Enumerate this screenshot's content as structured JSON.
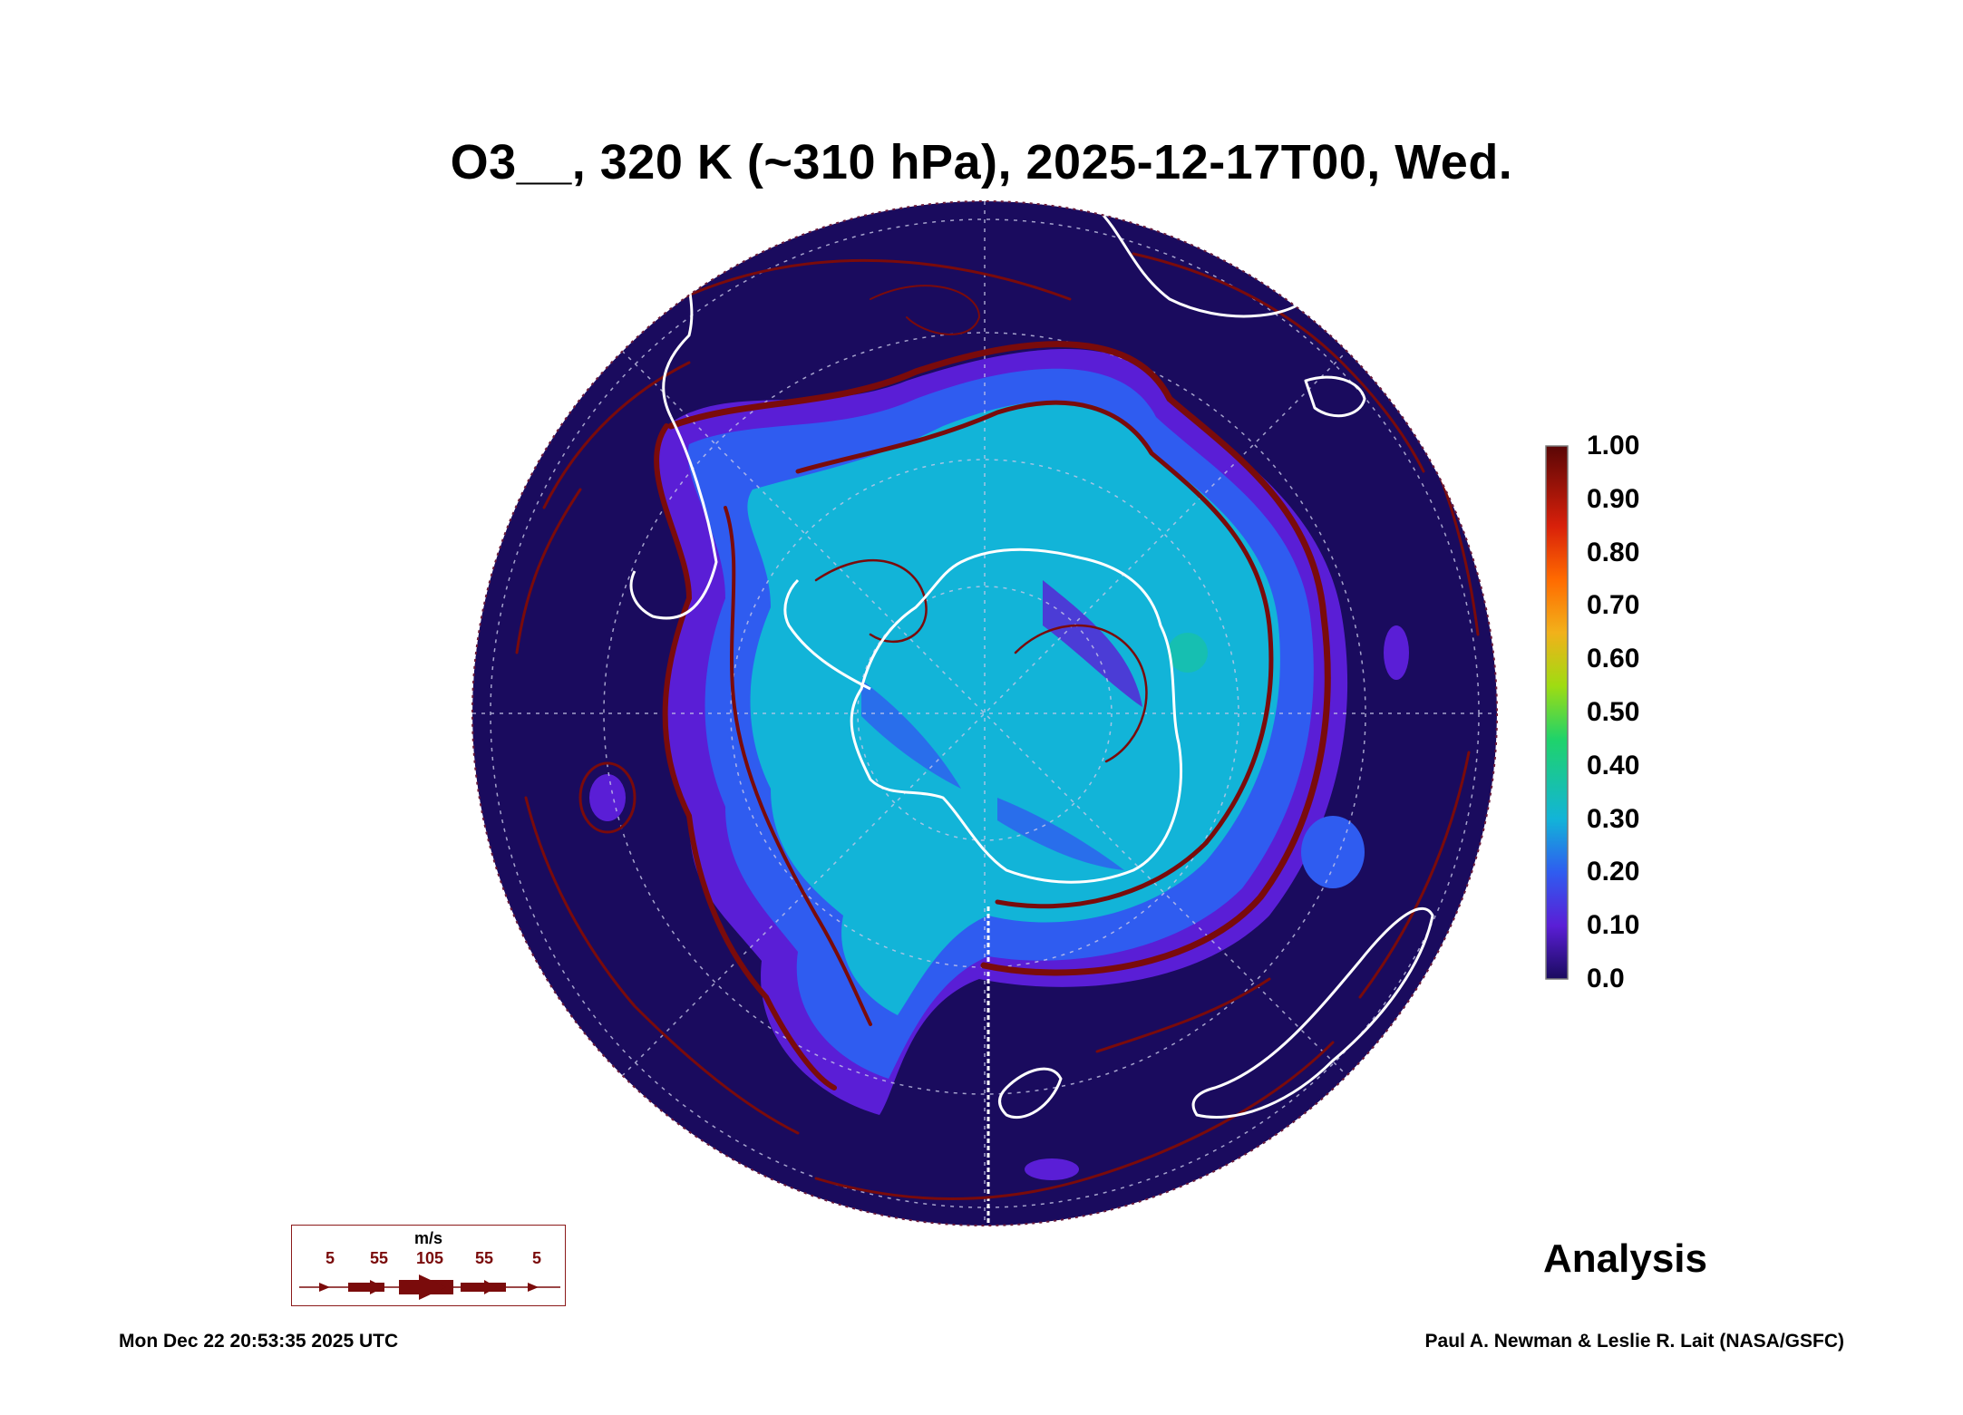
{
  "title": "O3__, 320 K (~310 hPa), 2025-12-17T00, Wed.",
  "colorbar": {
    "labels": [
      "1.00",
      "0.90",
      "0.80",
      "0.70",
      "0.60",
      "0.50",
      "0.40",
      "0.30",
      "0.20",
      "0.10",
      "0.0"
    ],
    "range": [
      0.0,
      1.0
    ],
    "colors": [
      "#1a0b5e",
      "#5a1ed6",
      "#2f5cf0",
      "#12b4d8",
      "#1fd36a",
      "#9fdc12",
      "#f2b11a",
      "#ff6a00",
      "#d8200a",
      "#7a0b0b"
    ]
  },
  "map": {
    "projection": "south polar stereographic",
    "background_color": "#1a0b5e",
    "coastline_color": "#ffffff",
    "streamline_color": "#7a0b0b",
    "grid": true
  },
  "wind_legend": {
    "units": "m/s",
    "labels": [
      "5",
      "55",
      "105",
      "55",
      "5"
    ]
  },
  "analysis_label": "Analysis",
  "footer": {
    "timestamp": "Mon Dec 22 20:53:35 2025 UTC",
    "credit": "Paul A. Newman & Leslie R. Lait (NASA/GSFC)"
  }
}
